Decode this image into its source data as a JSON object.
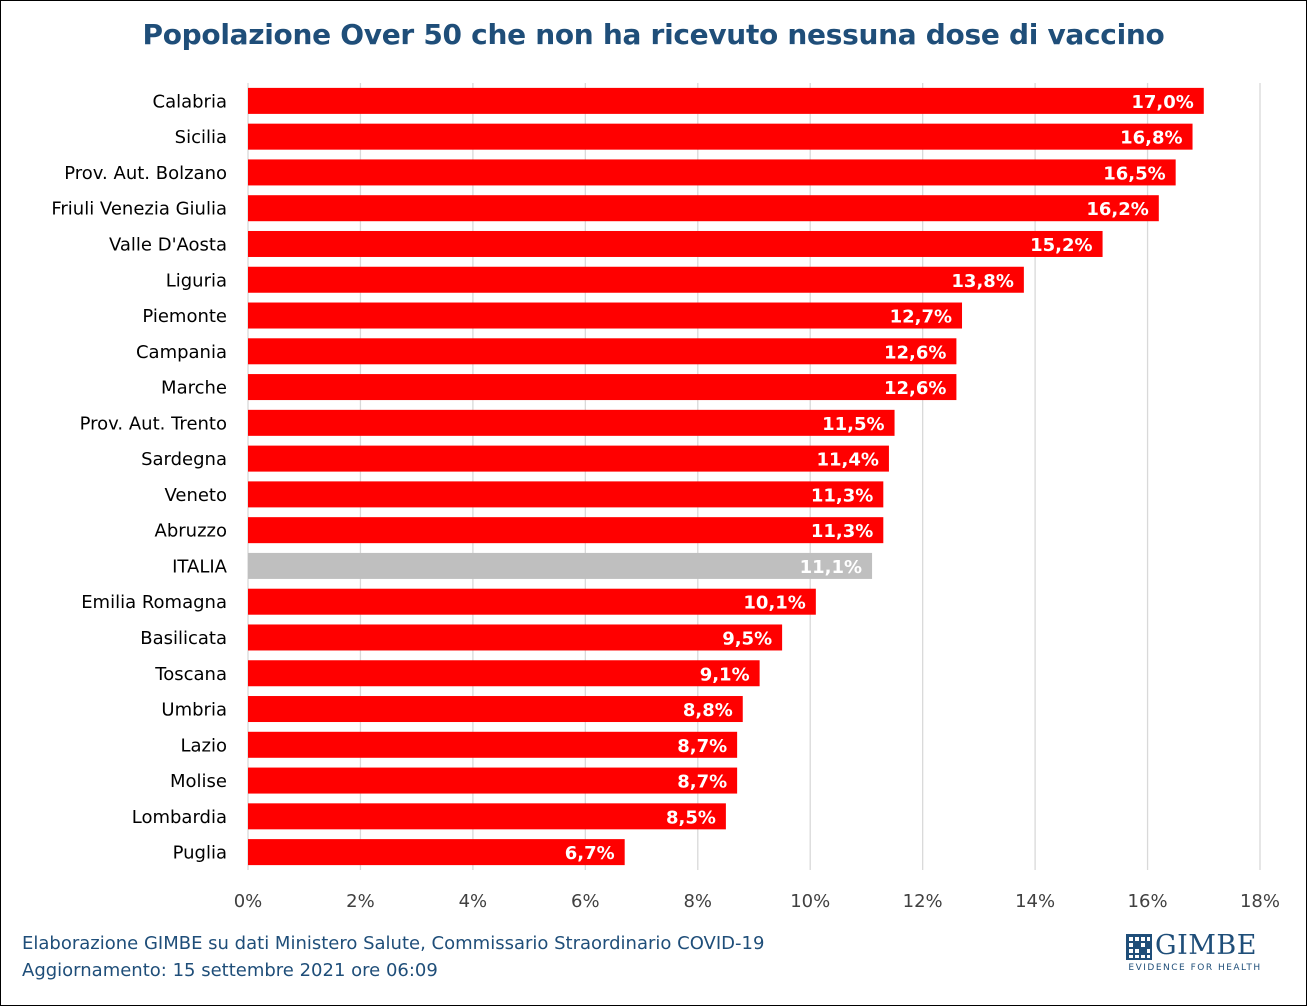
{
  "chart_data": {
    "type": "bar",
    "orientation": "horizontal",
    "title": "Popolazione Over 50 che non ha ricevuto nessuna dose di vaccino",
    "categories": [
      "Calabria",
      "Sicilia",
      "Prov. Aut. Bolzano",
      "Friuli Venezia Giulia",
      "Valle D'Aosta",
      "Liguria",
      "Piemonte",
      "Campania",
      "Marche",
      "Prov. Aut. Trento",
      "Sardegna",
      "Veneto",
      "Abruzzo",
      "ITALIA",
      "Emilia Romagna",
      "Basilicata",
      "Toscana",
      "Umbria",
      "Lazio",
      "Molise",
      "Lombardia",
      "Puglia"
    ],
    "values": [
      17.0,
      16.8,
      16.5,
      16.2,
      15.2,
      13.8,
      12.7,
      12.6,
      12.6,
      11.5,
      11.4,
      11.3,
      11.3,
      11.1,
      10.1,
      9.5,
      9.1,
      8.8,
      8.7,
      8.7,
      8.5,
      6.7
    ],
    "data_labels": [
      "17,0%",
      "16,8%",
      "16,5%",
      "16,2%",
      "15,2%",
      "13,8%",
      "12,7%",
      "12,6%",
      "12,6%",
      "11,5%",
      "11,4%",
      "11,3%",
      "11,3%",
      "11,1%",
      "10,1%",
      "9,5%",
      "9,1%",
      "8,8%",
      "8,7%",
      "8,7%",
      "8,5%",
      "6,7%"
    ],
    "xlim": [
      0,
      18
    ],
    "x_ticks": [
      "0%",
      "2%",
      "4%",
      "6%",
      "8%",
      "10%",
      "12%",
      "14%",
      "16%",
      "18%"
    ],
    "grid": true,
    "highlight_category": "ITALIA",
    "colors": {
      "bar": "#ff0000",
      "highlight": "#bfbfbf",
      "grid": "#d9d9d9",
      "label": "#ffffff"
    }
  },
  "footer": {
    "line1": "Elaborazione GIMBE su dati Ministero Salute, Commissario Straordinario COVID-19",
    "line2": "Aggiornamento: 15 settembre 2021 ore 06:09"
  },
  "logo": {
    "name": "GIMBE",
    "tagline": "EVIDENCE FOR HEALTH",
    "color": "#1f4e79"
  }
}
